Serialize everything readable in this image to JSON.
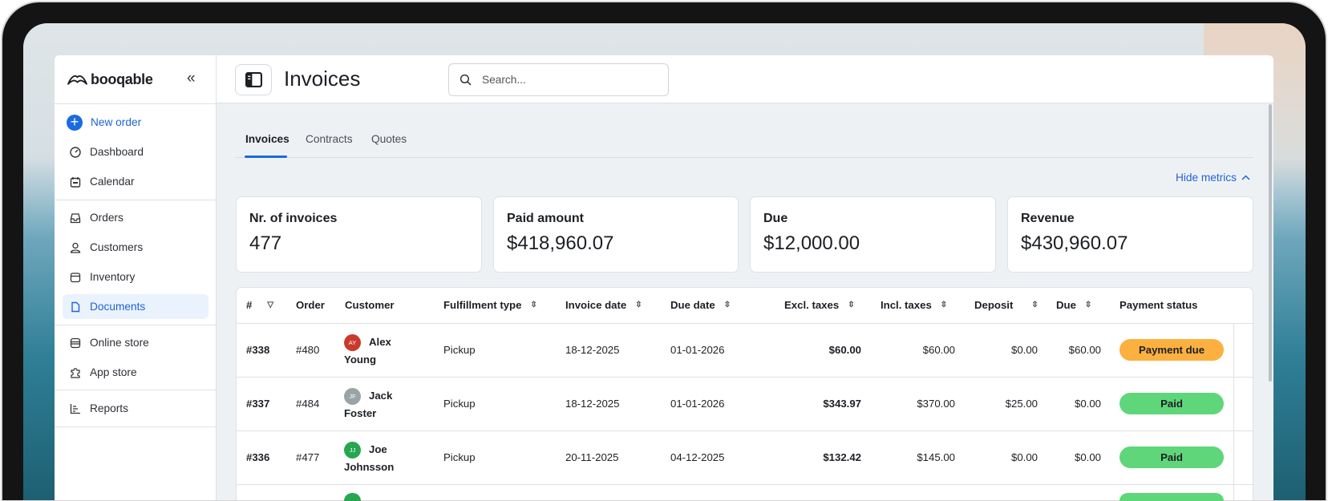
{
  "app": {
    "brand": "booqable",
    "page_title": "Invoices",
    "search_placeholder": "Search..."
  },
  "sidebar": {
    "new_order": "New order",
    "items": [
      {
        "label": "Dashboard",
        "icon": "dashboard-icon"
      },
      {
        "label": "Calendar",
        "icon": "calendar-icon"
      },
      {
        "label": "Orders",
        "icon": "inbox-icon"
      },
      {
        "label": "Customers",
        "icon": "user-icon"
      },
      {
        "label": "Inventory",
        "icon": "box-icon"
      },
      {
        "label": "Documents",
        "icon": "document-icon",
        "active": true
      },
      {
        "label": "Online store",
        "icon": "store-icon"
      },
      {
        "label": "App store",
        "icon": "puzzle-icon"
      },
      {
        "label": "Reports",
        "icon": "chart-icon"
      }
    ]
  },
  "tabs": [
    {
      "label": "Invoices",
      "active": true
    },
    {
      "label": "Contracts"
    },
    {
      "label": "Quotes"
    }
  ],
  "hide_metrics": "Hide metrics",
  "metrics": [
    {
      "label": "Nr. of invoices",
      "value": "477"
    },
    {
      "label": "Paid amount",
      "value": "$418,960.07"
    },
    {
      "label": "Due",
      "value": "$12,000.00"
    },
    {
      "label": "Revenue",
      "value": "$430,960.07"
    }
  ],
  "table": {
    "columns": [
      "#",
      "Order",
      "Customer",
      "Fulfillment type",
      "Invoice date",
      "Due date",
      "Excl. taxes",
      "Incl. taxes",
      "Deposit",
      "Due",
      "Payment status"
    ],
    "rows": [
      {
        "id": "#338",
        "order": "#480",
        "initials": "AY",
        "avatar_color": "#c9392c",
        "first": "Alex",
        "last": "Young",
        "fulfillment": "Pickup",
        "invoice_date": "18-12-2025",
        "due_date": "01-01-2026",
        "excl": "$60.00",
        "incl": "$60.00",
        "deposit": "$0.00",
        "due": "$60.00",
        "status": "Payment due",
        "status_color": "#fbb040"
      },
      {
        "id": "#337",
        "order": "#484",
        "initials": "JF",
        "avatar_color": "#9aa3a8",
        "first": "Jack",
        "last": "Foster",
        "fulfillment": "Pickup",
        "invoice_date": "18-12-2025",
        "due_date": "01-01-2026",
        "excl": "$343.97",
        "incl": "$370.00",
        "deposit": "$25.00",
        "due": "$0.00",
        "status": "Paid",
        "status_color": "#5fd67a"
      },
      {
        "id": "#336",
        "order": "#477",
        "initials": "JJ",
        "avatar_color": "#27a651",
        "first": "Joe",
        "last": "Johnsson",
        "fulfillment": "Pickup",
        "invoice_date": "20-11-2025",
        "due_date": "04-12-2025",
        "excl": "$132.42",
        "incl": "$145.00",
        "deposit": "$0.00",
        "due": "$0.00",
        "status": "Paid",
        "status_color": "#5fd67a"
      }
    ]
  }
}
